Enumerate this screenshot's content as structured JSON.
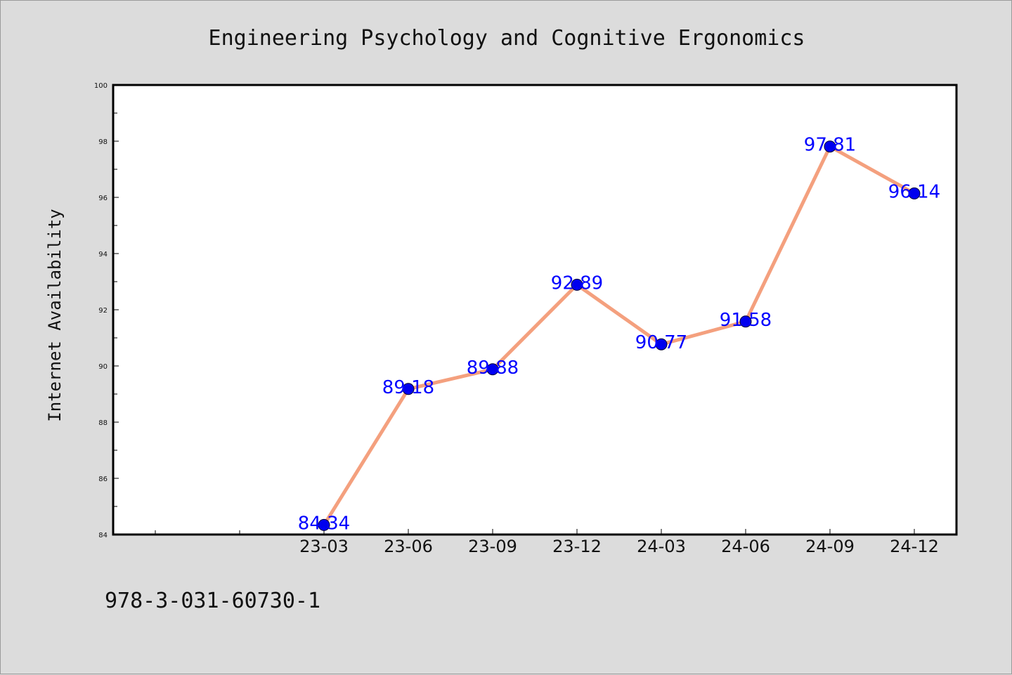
{
  "chart_data": {
    "type": "line",
    "title": "Engineering Psychology and Cognitive Ergonomics",
    "ylabel": "Internet Availability",
    "xlabel": "",
    "categories": [
      "23-03",
      "23-06",
      "23-09",
      "23-12",
      "24-03",
      "24-06",
      "24-09",
      "24-12"
    ],
    "series": [
      {
        "values": [
          84.34,
          89.18,
          89.88,
          92.89,
          90.77,
          91.58,
          97.81,
          96.14
        ]
      }
    ],
    "data_labels": [
      "84.34",
      "89.18",
      "89.88",
      "92.89",
      "90.77",
      "91.58",
      "97.81",
      "96.14"
    ],
    "ylim": [
      84,
      100
    ],
    "yticks": [
      "84",
      "86",
      "88",
      "90",
      "92",
      "94",
      "96",
      "98",
      "100"
    ],
    "grid": false,
    "colors": {
      "line": "#f4a07e",
      "marker": "#0000ee",
      "label": "#0000ff",
      "plot_bg": "#ffffff",
      "figure_bg": "#dcdcdc"
    }
  },
  "footer": {
    "text": "978-3-031-60730-1"
  }
}
